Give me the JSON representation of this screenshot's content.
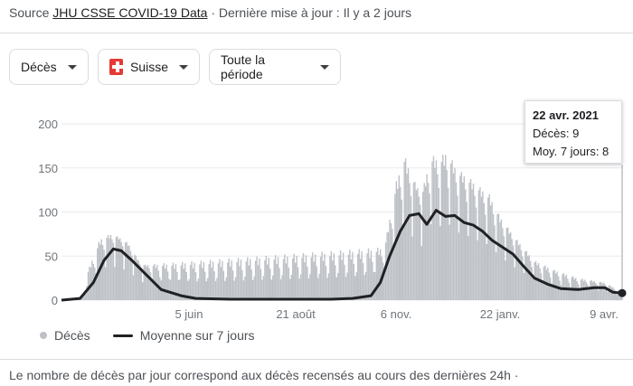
{
  "header": {
    "source_prefix": "Source",
    "source_link": "JHU CSSE COVID-19 Data",
    "updated": "· Dernière mise à jour : Il y a 2 jours"
  },
  "filters": {
    "metric": "Décès",
    "country": "Suisse",
    "period": "Toute la période"
  },
  "tooltip": {
    "date": "22 avr. 2021",
    "deaths": "Décès: 9",
    "avg": "Moy. 7 jours: 8"
  },
  "legend": {
    "bars": "Décès",
    "line": "Moyenne sur 7 jours"
  },
  "footnote": "Le nombre de décès par jour correspond aux décès recensés au cours des dernières 24h  ·",
  "colors": {
    "bars": "#bdc1c6",
    "line": "#202124",
    "grid": "#e8eaed"
  },
  "chart_data": {
    "type": "bar",
    "ylim": [
      0,
      200
    ],
    "yticks": [
      0,
      50,
      100,
      150,
      200
    ],
    "x_tick_labels": [
      "5 juin",
      "21 août",
      "6 nov.",
      "22 janv.",
      "9 avr."
    ],
    "x_range": [
      "2020-02-25",
      "2021-04-22"
    ],
    "series": [
      {
        "name": "Moyenne sur 7 jours",
        "kind": "line",
        "x": [
          "2020-02-25",
          "2020-03-10",
          "2020-03-20",
          "2020-03-28",
          "2020-04-04",
          "2020-04-10",
          "2020-04-18",
          "2020-04-28",
          "2020-05-10",
          "2020-05-25",
          "2020-06-05",
          "2020-07-01",
          "2020-08-01",
          "2020-08-21",
          "2020-09-15",
          "2020-10-01",
          "2020-10-15",
          "2020-10-22",
          "2020-10-29",
          "2020-11-06",
          "2020-11-13",
          "2020-11-20",
          "2020-11-26",
          "2020-12-03",
          "2020-12-10",
          "2020-12-17",
          "2020-12-24",
          "2020-12-31",
          "2021-01-07",
          "2021-01-14",
          "2021-01-22",
          "2021-01-30",
          "2021-02-07",
          "2021-02-15",
          "2021-02-25",
          "2021-03-07",
          "2021-03-20",
          "2021-04-01",
          "2021-04-09",
          "2021-04-15",
          "2021-04-22"
        ],
        "y": [
          0,
          2,
          20,
          45,
          58,
          56,
          45,
          30,
          12,
          5,
          2,
          1,
          1,
          1,
          1,
          2,
          5,
          20,
          50,
          78,
          96,
          98,
          86,
          102,
          95,
          96,
          88,
          85,
          78,
          68,
          60,
          52,
          38,
          25,
          18,
          13,
          12,
          14,
          14,
          9,
          8
        ]
      },
      {
        "name": "Décès",
        "kind": "bar",
        "x": [
          "2020-03-15",
          "2020-03-25",
          "2020-04-02",
          "2020-04-08",
          "2020-04-15",
          "2020-04-25",
          "2020-10-25",
          "2020-11-03",
          "2020-11-09",
          "2020-11-15",
          "2020-11-22",
          "2020-11-29",
          "2020-12-05",
          "2020-12-11",
          "2020-12-18",
          "2020-12-27",
          "2021-01-05",
          "2021-01-12",
          "2021-01-20",
          "2021-02-01",
          "2021-02-15",
          "2021-03-01",
          "2021-03-20",
          "2021-04-09",
          "2021-04-22"
        ],
        "y": [
          30,
          70,
          75,
          72,
          65,
          40,
          60,
          135,
          165,
          140,
          120,
          165,
          160,
          170,
          150,
          140,
          128,
          120,
          95,
          70,
          45,
          35,
          25,
          20,
          9
        ]
      }
    ]
  }
}
